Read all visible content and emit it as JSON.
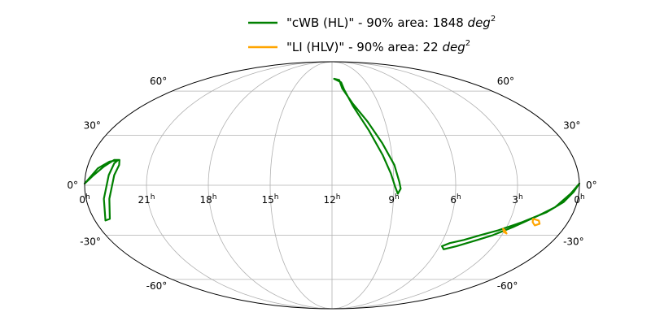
{
  "chart_data": {
    "type": "line",
    "projection": "mollweide",
    "grid": true,
    "legend_placement": "top-center",
    "ra_ticks": [
      {
        "label": "0",
        "sup": "h",
        "ra": 360
      },
      {
        "label": "21",
        "sup": "h",
        "ra": 315
      },
      {
        "label": "18",
        "sup": "h",
        "ra": 270
      },
      {
        "label": "15",
        "sup": "h",
        "ra": 225
      },
      {
        "label": "12",
        "sup": "h",
        "ra": 180
      },
      {
        "label": "9",
        "sup": "h",
        "ra": 135
      },
      {
        "label": "6",
        "sup": "h",
        "ra": 90
      },
      {
        "label": "3",
        "sup": "h",
        "ra": 45
      },
      {
        "label": "0",
        "sup": "h",
        "ra": 0
      }
    ],
    "dec_ticks": [
      {
        "label": "60°",
        "dec": 60
      },
      {
        "label": "30°",
        "dec": 30
      },
      {
        "label": "0°",
        "dec": 0
      },
      {
        "label": "-30°",
        "dec": -30
      },
      {
        "label": "-60°",
        "dec": -60
      }
    ],
    "series": [
      {
        "name": "\"cWB (HL)\" - 90% area: 1848 deg²",
        "legend_main": "\"cWB (HL)\" - 90% area: 1848 ",
        "legend_unit": "deg",
        "legend_exp": "2",
        "color": "#008000",
        "contours": [
          [
            [
              177,
              70
            ],
            [
              170,
              69
            ],
            [
              168,
              62
            ],
            [
              160,
              51
            ],
            [
              150,
              39
            ],
            [
              141,
              25
            ],
            [
              134,
              12
            ],
            [
              131,
              2
            ],
            [
              130,
              -2
            ],
            [
              132,
              -5
            ],
            [
              134,
              -1
            ],
            [
              137,
              7
            ],
            [
              142,
              18
            ],
            [
              150,
              33
            ],
            [
              160,
              49
            ],
            [
              166,
              61
            ],
            [
              168,
              67
            ],
            [
              177,
              70
            ]
          ],
          [
            [
              360,
              1
            ],
            [
              354,
              6
            ],
            [
              348,
              11
            ],
            [
              342,
              15
            ],
            [
              338,
              15
            ],
            [
              337,
              12
            ],
            [
              339,
              6
            ],
            [
              343,
              -8
            ],
            [
              348,
              -20
            ],
            [
              352,
              -21
            ],
            [
              347,
              -8
            ],
            [
              343,
              6
            ],
            [
              341,
              13
            ],
            [
              339,
              15
            ],
            [
              345,
              14
            ],
            [
              352,
              10
            ],
            [
              360,
              1
            ]
          ],
          [
            [
              0,
              1
            ],
            [
              6,
              -5
            ],
            [
              15,
              -13
            ],
            [
              25,
              -18
            ],
            [
              40,
              -25
            ],
            [
              52,
              -30
            ],
            [
              62,
              -33
            ],
            [
              76,
              -37
            ],
            [
              85,
              -39
            ],
            [
              88,
              -37
            ],
            [
              83,
              -35
            ],
            [
              73,
              -33
            ],
            [
              62,
              -30
            ],
            [
              50,
              -27
            ],
            [
              35,
              -22
            ],
            [
              20,
              -16
            ],
            [
              10,
              -10
            ],
            [
              4,
              -4
            ],
            [
              0,
              1
            ]
          ]
        ]
      },
      {
        "name": "\"LI (HLV)\" - 90% area: 22 deg²",
        "legend_main": "\"LI (HLV)\" - 90% area: 22 ",
        "legend_unit": "deg",
        "legend_exp": "2",
        "color": "#ffa500",
        "contours": [
          [
            [
              28,
              -20
            ],
            [
              23,
              -21
            ],
            [
              21,
              -23
            ],
            [
              24,
              -24
            ],
            [
              27,
              -22
            ],
            [
              28,
              -20
            ]
          ],
          [
            [
              47,
              -26
            ],
            [
              45,
              -27
            ],
            [
              42,
              -29
            ],
            [
              45,
              -28
            ],
            [
              47,
              -26
            ]
          ]
        ]
      }
    ]
  }
}
